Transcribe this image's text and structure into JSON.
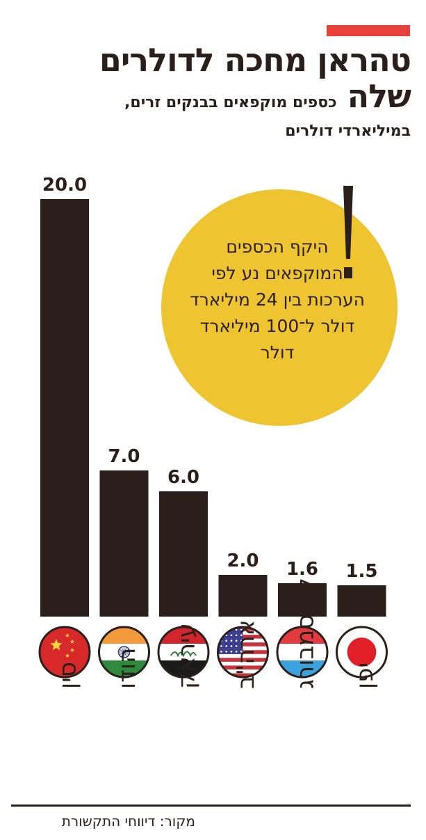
{
  "title": {
    "line1": "טהראן מחכה לדולרים",
    "line2_strong": "שלה",
    "line2_sub": "כספים מוקפאים בבנקים זרים,",
    "line3": "במיליארדי דולרים"
  },
  "callout": {
    "text": "היקף הכספים המוקפאים נע לפי הערכות בין 24 מיליארד דולר ל־100 מיליארד דולר",
    "mark": "!"
  },
  "source": "מקור: דיווחי התקשורת",
  "colors": {
    "bar": "#2a1f1a",
    "accent_red": "#e8413c",
    "bubble": "#efc431",
    "text": "#2a1f1a"
  },
  "chart_data": {
    "type": "bar",
    "categories": [
      "סין",
      "הודו",
      "עיראק",
      "ארה\"ב",
      "לוקסמבורג",
      "יפן"
    ],
    "values": [
      20.0,
      7.0,
      6.0,
      2.0,
      1.6,
      1.5
    ],
    "value_labels": [
      "20.0",
      "7.0",
      "6.0",
      "2.0",
      "1.6",
      "1.5"
    ],
    "flags": [
      "china-flag-icon",
      "india-flag-icon",
      "iraq-flag-icon",
      "usa-flag-icon",
      "luxembourg-flag-icon",
      "japan-flag-icon"
    ],
    "ylim": [
      0,
      20
    ],
    "grid": false,
    "legend": "none"
  }
}
